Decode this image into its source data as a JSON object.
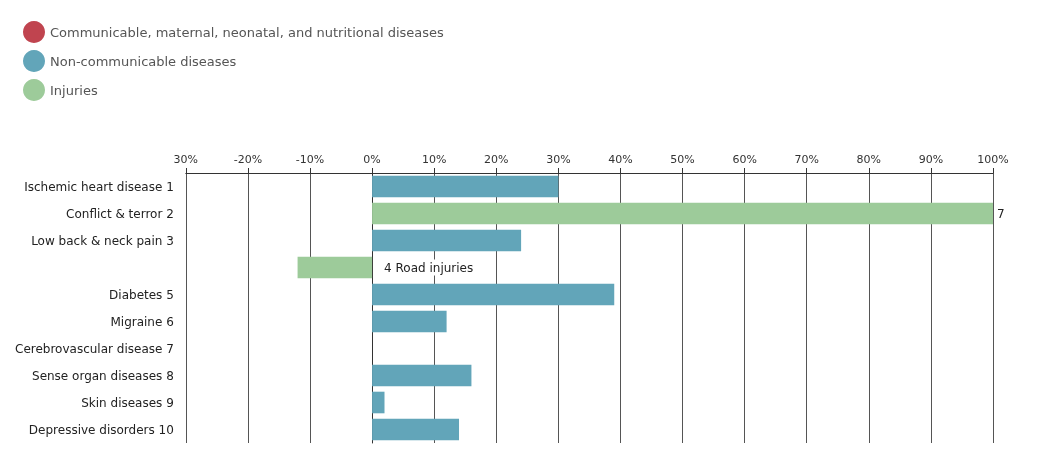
{
  "chart_data": {
    "type": "bar",
    "orientation": "horizontal",
    "categories": [
      "Ischemic heart disease 1",
      "Conflict & terror 2",
      "Low back & neck pain 3",
      "4 Road injuries",
      "Diabetes 5",
      "Migraine 6",
      "Cerebrovascular disease 7",
      "Sense organ diseases 8",
      "Skin diseases 9",
      "Depressive disorders 10"
    ],
    "series": [
      {
        "name": "Communicable, maternal, neonatal, and nutritional diseases",
        "color": "#c0444f",
        "values": [
          null,
          null,
          null,
          null,
          null,
          null,
          null,
          null,
          null,
          null
        ]
      },
      {
        "name": "Non-communicable diseases",
        "color": "#62a5b9",
        "values": [
          30,
          null,
          24,
          null,
          39,
          12,
          0,
          16,
          2,
          14
        ]
      },
      {
        "name": "Injuries",
        "color": "#9dcb9a",
        "values": [
          null,
          100,
          null,
          -12,
          null,
          null,
          null,
          null,
          null,
          null
        ]
      }
    ],
    "annotations": [
      {
        "text": "7",
        "x": 100,
        "y": "Conflict & terror 2"
      }
    ],
    "xlim": [
      -30,
      100
    ],
    "xticks": [
      {
        "value": -30,
        "label": "30%"
      },
      {
        "value": -20,
        "label": "-20%"
      },
      {
        "value": -10,
        "label": "-10%"
      },
      {
        "value": 0,
        "label": "0%"
      },
      {
        "value": 10,
        "label": "10%"
      },
      {
        "value": 20,
        "label": "20%"
      },
      {
        "value": 30,
        "label": "30%"
      },
      {
        "value": 40,
        "label": "40%"
      },
      {
        "value": 50,
        "label": "50%"
      },
      {
        "value": 60,
        "label": "60%"
      },
      {
        "value": 70,
        "label": "70%"
      },
      {
        "value": 80,
        "label": "80%"
      },
      {
        "value": 90,
        "label": "90%"
      },
      {
        "value": 100,
        "label": "100%"
      }
    ],
    "grid": "x",
    "legend": "top left"
  }
}
